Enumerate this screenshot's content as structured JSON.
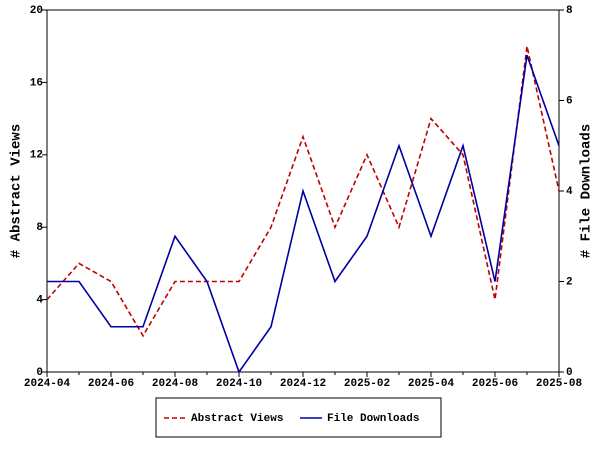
{
  "chart_data": {
    "type": "line",
    "x": [
      "2024-04",
      null,
      "2024-06",
      null,
      "2024-08",
      null,
      "2024-10",
      null,
      "2024-12",
      null,
      "2025-02",
      null,
      "2025-04",
      null,
      "2025-06",
      null,
      "2025-08"
    ],
    "ylabel": "# Abstract Views",
    "y2label": "# File Downloads",
    "ylim": [
      0,
      20
    ],
    "yticks": [
      0,
      4,
      8,
      12,
      16,
      20
    ],
    "y2lim": [
      0,
      8
    ],
    "y2ticks": [
      0,
      2,
      4,
      6,
      8
    ],
    "legend": "bottom",
    "series": [
      {
        "name": "Abstract Views",
        "color": "#c00000",
        "dash": true,
        "values": [
          4,
          6,
          5,
          2,
          5,
          5,
          5,
          8,
          13,
          8,
          12,
          8,
          14,
          12,
          4,
          18,
          10
        ]
      },
      {
        "name": "File Downloads",
        "color": "#0000a0",
        "axis": "y2",
        "values": [
          2,
          2,
          1,
          1,
          3,
          2,
          0,
          1,
          4,
          2,
          3,
          5,
          3,
          5,
          2,
          7,
          5
        ]
      }
    ]
  }
}
